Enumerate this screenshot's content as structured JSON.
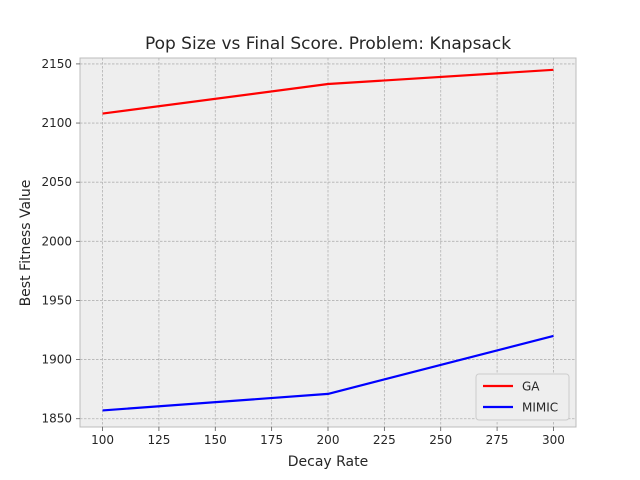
{
  "chart_data": {
    "type": "line",
    "title": "Pop Size vs Final Score.  Problem: Knapsack",
    "xlabel": "Decay Rate",
    "ylabel": "Best Fitness Value",
    "xlim": [
      90,
      310
    ],
    "ylim": [
      1843,
      2155
    ],
    "xticks": [
      100,
      125,
      150,
      175,
      200,
      225,
      250,
      275,
      300
    ],
    "yticks": [
      1850,
      1900,
      1950,
      2000,
      2050,
      2100,
      2150
    ],
    "grid": true,
    "legend_position": "lower-right",
    "x": [
      100,
      200,
      300
    ],
    "series": [
      {
        "name": "GA",
        "color": "#ff0000",
        "values": [
          2108,
          2133,
          2145
        ]
      },
      {
        "name": "MIMIC",
        "color": "#0000ff",
        "values": [
          1857,
          1871,
          1920
        ]
      }
    ]
  }
}
